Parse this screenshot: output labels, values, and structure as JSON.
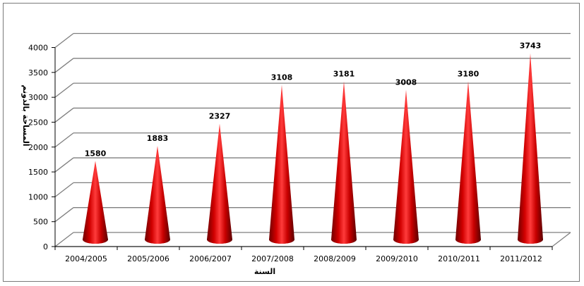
{
  "chart_data": {
    "type": "bar",
    "bar_shape": "cone",
    "categories": [
      "2004/2005",
      "2005/2006",
      "2006/2007",
      "2007/2008",
      "2008/2009",
      "2009/2010",
      "2010/2011",
      "2011/2012"
    ],
    "values": [
      1580,
      1883,
      2327,
      3108,
      3181,
      3008,
      3180,
      3743
    ],
    "data_labels": [
      "1580",
      "1883",
      "2327",
      "3108",
      "3181",
      "3008",
      "3180",
      "3743"
    ],
    "title": "",
    "xlabel": "السنة",
    "ylabel": "المساحة بالدونم",
    "ylim": [
      0,
      4000
    ],
    "yticks": [
      "0",
      "500",
      "1000",
      "1500",
      "2000",
      "2500",
      "3000",
      "3500",
      "4000"
    ],
    "grid": true,
    "legend": "none",
    "bar_color": "#c00000",
    "grid_color": "#7f7f7f"
  }
}
